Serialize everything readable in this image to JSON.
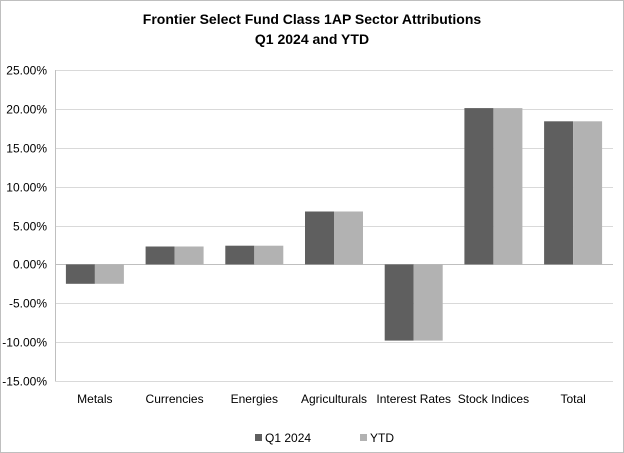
{
  "chart_data": {
    "type": "bar",
    "title": [
      "Frontier Select Fund Class 1AP Sector Attributions",
      "Q1 2024 and YTD"
    ],
    "xlabel": "",
    "ylabel": "",
    "categories": [
      "Metals",
      "Currencies",
      "Energies",
      "Agriculturals",
      "Interest Rates",
      "Stock Indices",
      "Total"
    ],
    "series": [
      {
        "name": "Q1 2024",
        "values": [
          -2.5,
          2.3,
          2.4,
          6.8,
          -9.8,
          20.1,
          18.4
        ],
        "color": "#5f5f5f"
      },
      {
        "name": "YTD",
        "values": [
          -2.5,
          2.3,
          2.4,
          6.8,
          -9.8,
          20.1,
          18.4
        ],
        "color": "#b2b2b2"
      }
    ],
    "ylim": [
      -15,
      25
    ],
    "yticks": [
      "25.00%",
      "20.00%",
      "15.00%",
      "10.00%",
      "5.00%",
      "0.00%",
      "-5.00%",
      "-10.00%",
      "-15.00%"
    ],
    "ytick_values": [
      25,
      20,
      15,
      10,
      5,
      0,
      -5,
      -10,
      -15
    ],
    "grid": "horizontal",
    "legend": "bottom-center"
  }
}
